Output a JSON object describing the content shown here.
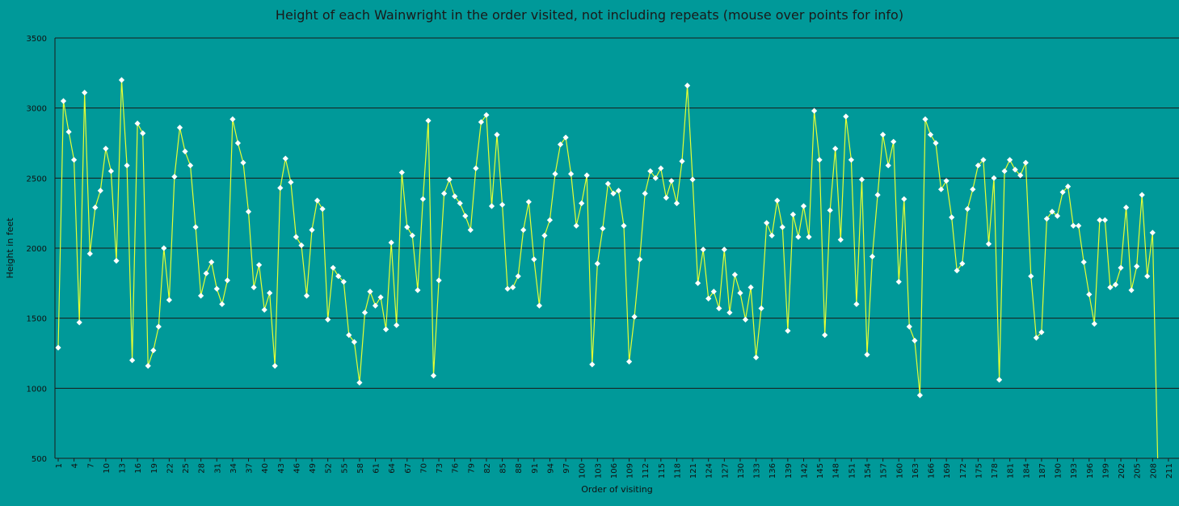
{
  "chart_data": {
    "type": "line",
    "title": "Height of each Wainwright in the order visited, not including repeats (mouse over points for info)",
    "xlabel": "Order of visiting",
    "ylabel": "Height in feet",
    "ylim": [
      500,
      3500
    ],
    "yticks": [
      500,
      1000,
      1500,
      2000,
      2500,
      3000,
      3500
    ],
    "xlim": [
      1,
      213
    ],
    "xticks": [
      1,
      4,
      7,
      10,
      13,
      16,
      19,
      22,
      25,
      28,
      31,
      34,
      37,
      40,
      43,
      46,
      49,
      52,
      55,
      58,
      61,
      64,
      67,
      70,
      73,
      76,
      79,
      82,
      85,
      88,
      91,
      94,
      97,
      100,
      103,
      106,
      109,
      112,
      115,
      118,
      121,
      124,
      127,
      130,
      133,
      136,
      139,
      142,
      145,
      148,
      151,
      154,
      157,
      160,
      163,
      166,
      169,
      172,
      175,
      178,
      181,
      184,
      187,
      190,
      193,
      196,
      199,
      202,
      205,
      208,
      211
    ],
    "grid": "horizontal",
    "colors": {
      "background": "#009999",
      "line": "#e6ff33",
      "marker": "#ffffff",
      "gridline": "#1a1a1a"
    },
    "series": [
      {
        "values": [
          1290,
          3050,
          2830,
          2630,
          1470,
          3110,
          1960,
          2290,
          2410,
          2710,
          2550,
          1910,
          3200,
          2590,
          1200,
          2890,
          2820,
          1160,
          1270,
          1440,
          2000,
          1630,
          2510,
          2860,
          2690,
          2590,
          2150,
          1660,
          1820,
          1900,
          1710,
          1600,
          1770,
          2920,
          2750,
          2610,
          2260,
          1720,
          1880,
          1560,
          1680,
          1160,
          2430,
          2640,
          2470,
          2080,
          2020,
          1660,
          2130,
          2340,
          2280,
          1490,
          1860,
          1800,
          1760,
          1380,
          1330,
          1040,
          1540,
          1690,
          1590,
          1650,
          1420,
          2040,
          1450,
          2540,
          2150,
          2090,
          1700,
          2350,
          2910,
          1090,
          1770,
          2390,
          2490,
          2370,
          2320,
          2230,
          2130,
          2570,
          2900,
          2950,
          2300,
          2810,
          2310,
          1710,
          1720,
          1800,
          2130,
          2330,
          1920,
          1590,
          2090,
          2200,
          2530,
          2740,
          2790,
          2530,
          2160,
          2320,
          2520,
          1170,
          1890,
          2140,
          2460,
          2390,
          2410,
          2160,
          1190,
          1510,
          1920,
          2390,
          2550,
          2500,
          2570,
          2360,
          2480,
          2320,
          2620,
          3160,
          2490,
          1750,
          1990,
          1640,
          1690,
          1570,
          1990,
          1540,
          1810,
          1680,
          1490,
          1720,
          1220,
          1570,
          2180,
          2090,
          2340,
          2150,
          1410,
          2240,
          2080,
          2300,
          2080,
          2980,
          2630,
          1380,
          2270,
          2710,
          2060,
          2940,
          2630,
          1600,
          2490,
          1240,
          1940,
          2380,
          2810,
          2590,
          2760,
          1760,
          2350,
          1440,
          1340,
          950,
          2920,
          2810,
          2750,
          2420,
          2480,
          2220,
          1840,
          1890,
          2280,
          2420,
          2590,
          2630,
          2030,
          2500,
          1060,
          2550,
          2630,
          2560,
          2520,
          2610,
          1800,
          1360,
          1400,
          2210,
          2260,
          2230,
          2400,
          2440,
          2160,
          2160,
          1900,
          1670,
          1460,
          2200,
          2200,
          1720,
          1740,
          1860,
          2290,
          1700,
          1870,
          2380,
          1800,
          2110,
          450
        ]
      }
    ]
  }
}
